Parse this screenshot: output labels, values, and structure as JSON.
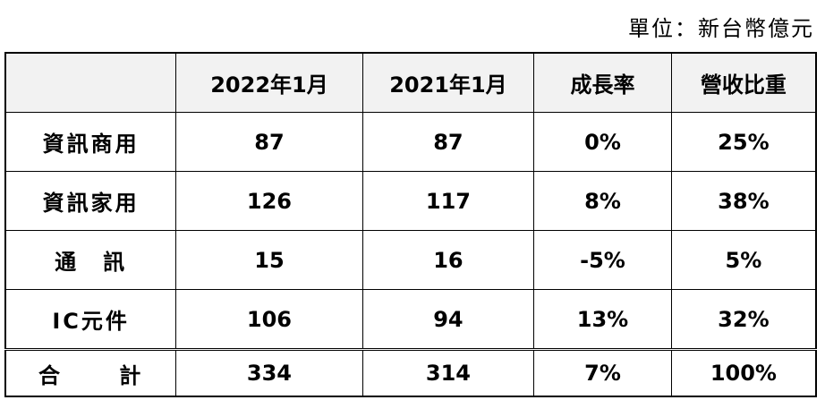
{
  "unit": "單位：新台幣億元",
  "table": {
    "header": [
      "",
      "2022年1月",
      "2021年1月",
      "成長率",
      "營收比重"
    ],
    "rows": [
      [
        "資訊商用",
        "87",
        "87",
        "0%",
        "25%"
      ],
      [
        "資訊家用",
        "126",
        "117",
        "8%",
        "38%"
      ],
      [
        "通　訊",
        "15",
        "16",
        "-5%",
        "5%"
      ],
      [
        "IC元件",
        "106",
        "94",
        "13%",
        "32%"
      ],
      [
        "合　計",
        "334",
        "314",
        "7%",
        "100%"
      ]
    ]
  }
}
